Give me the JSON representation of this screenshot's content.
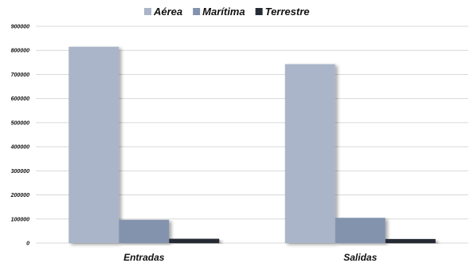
{
  "chart_data": {
    "type": "bar",
    "categories": [
      "Entradas",
      "Salidas"
    ],
    "series": [
      {
        "name": "Aérea",
        "values": [
          815000,
          743000
        ]
      },
      {
        "name": "Marítima",
        "values": [
          97000,
          105000
        ]
      },
      {
        "name": "Terrestre",
        "values": [
          18000,
          17000
        ]
      }
    ],
    "yticks": [
      "0",
      "100000",
      "200000",
      "300000",
      "400000",
      "500000",
      "600000",
      "700000",
      "800000",
      "900000"
    ],
    "ylim": [
      0,
      900000
    ],
    "grid": true,
    "legend_position": "top-center",
    "colors": [
      "#abb5c9",
      "#8393ad",
      "#262c36"
    ]
  }
}
